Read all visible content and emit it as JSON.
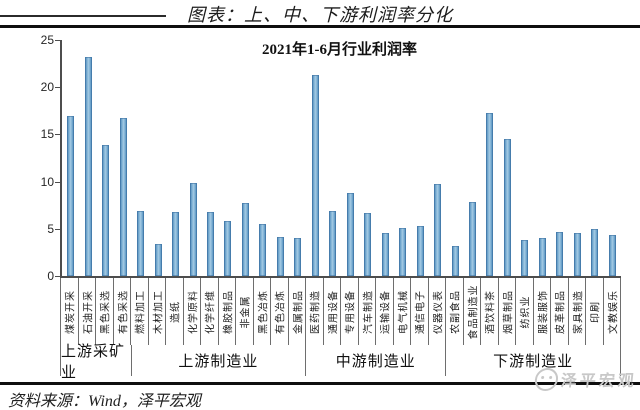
{
  "header": {
    "title": "图表：上、中、下游利润率分化"
  },
  "footer": {
    "source": "资料来源：Wind，泽平宏观"
  },
  "watermark": {
    "icon": "smiley-logo-icon",
    "label": "泽平宏观"
  },
  "colors": {
    "bar_edge": "#4783b4",
    "bar_center": "#a6cbe4",
    "axis": "#4d4d4d",
    "rule": "#0e0e0e",
    "watermark": "#c8c8c8"
  },
  "chart_data": {
    "type": "bar",
    "title": "2021年1-6月行业利润率",
    "xlabel": "",
    "ylabel": "",
    "ylim": [
      0,
      25
    ],
    "yticks": [
      0,
      5,
      10,
      15,
      20,
      25
    ],
    "grid": false,
    "legend_position": "none",
    "categories": [
      "煤炭开采",
      "石油开采",
      "黑色采选",
      "有色采选",
      "燃料加工",
      "木材加工",
      "造纸",
      "化学原料",
      "化学纤维",
      "橡胶制品",
      "非金属",
      "黑色冶炼",
      "有色冶炼",
      "金属制品",
      "医药制造",
      "通用设备",
      "专用设备",
      "汽车制造",
      "运输设备",
      "电气机械",
      "通信电子",
      "仪器仪表",
      "农副食品",
      "食品制造业",
      "酒饮料茶",
      "烟草制品",
      "纺织业",
      "服装服饰",
      "皮革制品",
      "家具制造",
      "印刷",
      "文教娱乐"
    ],
    "values": [
      17.0,
      23.2,
      13.9,
      16.7,
      6.9,
      3.4,
      6.8,
      9.9,
      6.8,
      5.8,
      7.7,
      5.5,
      4.1,
      4.0,
      21.3,
      6.9,
      8.8,
      6.7,
      4.6,
      5.1,
      5.3,
      9.7,
      3.2,
      7.8,
      17.3,
      14.5,
      3.8,
      4.0,
      4.7,
      4.6,
      5.0,
      4.3
    ],
    "groups": [
      {
        "label": "上游采矿业",
        "count": 4
      },
      {
        "label": "上游制造业",
        "count": 10
      },
      {
        "label": "中游制造业",
        "count": 8
      },
      {
        "label": "下游制造业",
        "count": 10
      }
    ]
  }
}
